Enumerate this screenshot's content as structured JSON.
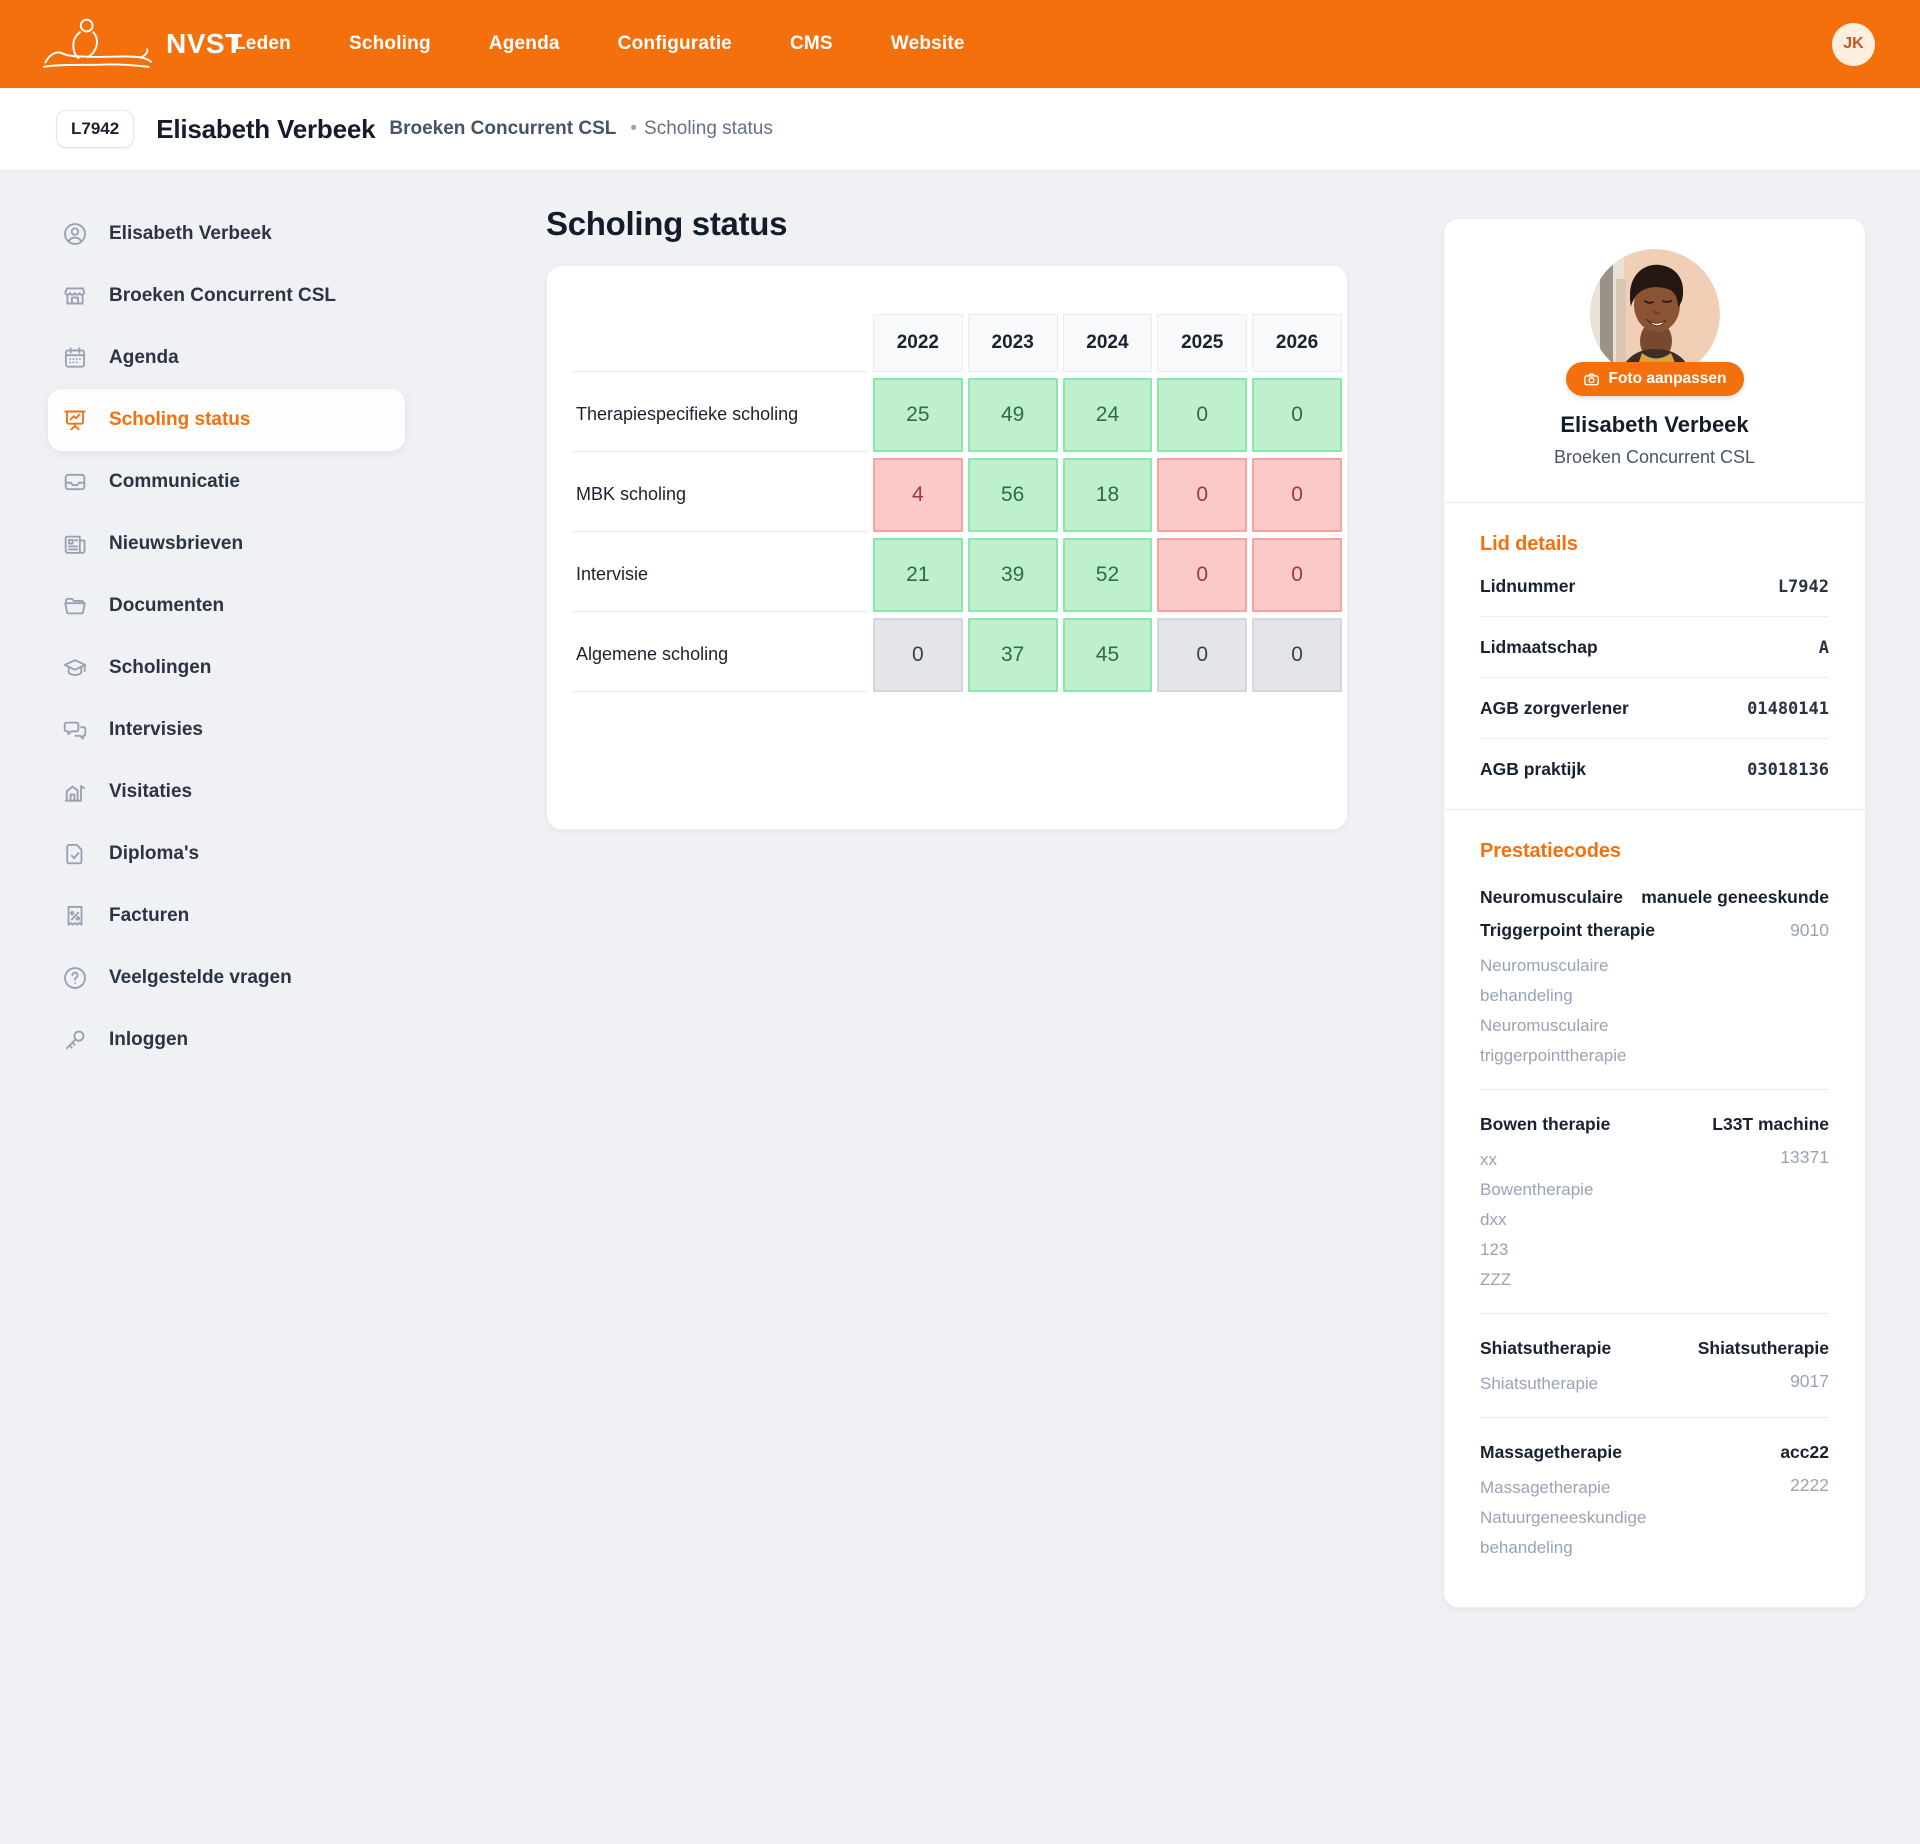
{
  "colors": {
    "accent": "#F4700C",
    "page_bg": "#F0F1F4",
    "header_cell_bg": "#F8F9FB",
    "green_bg": "#BFF0CD",
    "green_border": "#88E7AB",
    "green_text": "#2F6B4A",
    "red_bg": "#FBC9C7",
    "red_border": "#F6A2A0",
    "red_text": "#9E3B39",
    "neutral_bg": "#E4E5E9",
    "neutral_border": "#D4D6DC",
    "neutral_text": "#39404D"
  },
  "navbar": {
    "brand": "NVST",
    "items": [
      {
        "label": "Leden"
      },
      {
        "label": "Scholing"
      },
      {
        "label": "Agenda"
      },
      {
        "label": "Configuratie"
      },
      {
        "label": "CMS"
      },
      {
        "label": "Website"
      }
    ],
    "avatar_initials": "JK"
  },
  "breadcrumb": {
    "badge": "L7942",
    "name": "Elisabeth Verbeek",
    "company": "Broeken Concurrent CSL",
    "separator": "•",
    "page": "Scholing status"
  },
  "sidebar": {
    "items": [
      {
        "label": "Elisabeth Verbeek",
        "icon": "user-icon",
        "active": false
      },
      {
        "label": "Broeken Concurrent CSL",
        "icon": "storefront-icon",
        "active": false
      },
      {
        "label": "Agenda",
        "icon": "calendar-icon",
        "active": false
      },
      {
        "label": "Scholing status",
        "icon": "presentation-chart-icon",
        "active": true
      },
      {
        "label": "Communicatie",
        "icon": "inbox-icon",
        "active": false
      },
      {
        "label": "Nieuwsbrieven",
        "icon": "newspaper-icon",
        "active": false
      },
      {
        "label": "Documenten",
        "icon": "folder-icon",
        "active": false
      },
      {
        "label": "Scholingen",
        "icon": "academic-cap-icon",
        "active": false
      },
      {
        "label": "Intervisies",
        "icon": "chat-bubbles-icon",
        "active": false
      },
      {
        "label": "Visitaties",
        "icon": "building-visit-icon",
        "active": false
      },
      {
        "label": "Diploma's",
        "icon": "document-check-icon",
        "active": false
      },
      {
        "label": "Facturen",
        "icon": "receipt-percent-icon",
        "active": false
      },
      {
        "label": "Veelgestelde vragen",
        "icon": "question-circle-icon",
        "active": false
      },
      {
        "label": "Inloggen",
        "icon": "key-icon",
        "active": false
      }
    ]
  },
  "main": {
    "title": "Scholing status",
    "table": {
      "year_headers": [
        "2022",
        "2023",
        "2024",
        "2025",
        "2026"
      ],
      "rows": [
        {
          "label": "Therapiespecifieke scholing",
          "cells": [
            {
              "value": "25",
              "status": "ok"
            },
            {
              "value": "49",
              "status": "ok"
            },
            {
              "value": "24",
              "status": "ok"
            },
            {
              "value": "0",
              "status": "ok"
            },
            {
              "value": "0",
              "status": "ok"
            }
          ]
        },
        {
          "label": "MBK scholing",
          "cells": [
            {
              "value": "4",
              "status": "alert"
            },
            {
              "value": "56",
              "status": "ok"
            },
            {
              "value": "18",
              "status": "ok"
            },
            {
              "value": "0",
              "status": "alert"
            },
            {
              "value": "0",
              "status": "alert"
            }
          ]
        },
        {
          "label": "Intervisie",
          "cells": [
            {
              "value": "21",
              "status": "ok"
            },
            {
              "value": "39",
              "status": "ok"
            },
            {
              "value": "52",
              "status": "ok"
            },
            {
              "value": "0",
              "status": "alert"
            },
            {
              "value": "0",
              "status": "alert"
            }
          ]
        },
        {
          "label": "Algemene scholing",
          "cells": [
            {
              "value": "0",
              "status": "neutral"
            },
            {
              "value": "37",
              "status": "ok"
            },
            {
              "value": "45",
              "status": "ok"
            },
            {
              "value": "0",
              "status": "neutral"
            },
            {
              "value": "0",
              "status": "neutral"
            }
          ]
        }
      ]
    }
  },
  "profile": {
    "photo_button_label": "Foto aanpassen",
    "name": "Elisabeth Verbeek",
    "company": "Broeken Concurrent CSL",
    "lid_details": {
      "heading": "Lid details",
      "rows": [
        {
          "label": "Lidnummer",
          "value": "L7942"
        },
        {
          "label": "Lidmaatschap",
          "value": "A"
        },
        {
          "label": "AGB zorgverlener",
          "value": "01480141"
        },
        {
          "label": "AGB praktijk",
          "value": "03018136"
        }
      ]
    },
    "prestatiecodes": {
      "heading": "Prestatiecodes",
      "entries": [
        {
          "title": "Neuromusculaire Triggerpoint therapie",
          "title_right": "manuele geneeskunde",
          "code": "9010",
          "lines": [
            "Neuromusculaire behandeling",
            "Neuromusculaire triggerpointtherapie"
          ]
        },
        {
          "title": "Bowen therapie",
          "title_right": "L33T machine",
          "code": "13371",
          "lines": [
            "xx",
            "Bowentherapie",
            "dxx",
            "123",
            "ZZZ"
          ]
        },
        {
          "title": "Shiatsutherapie",
          "title_right": "Shiatsutherapie",
          "code": "9017",
          "lines": [
            "Shiatsutherapie"
          ]
        },
        {
          "title": "Massagetherapie",
          "title_right": "acc22",
          "code": "2222",
          "lines": [
            "Massagetherapie",
            "Natuurgeneeskundige behandeling"
          ]
        }
      ]
    }
  }
}
